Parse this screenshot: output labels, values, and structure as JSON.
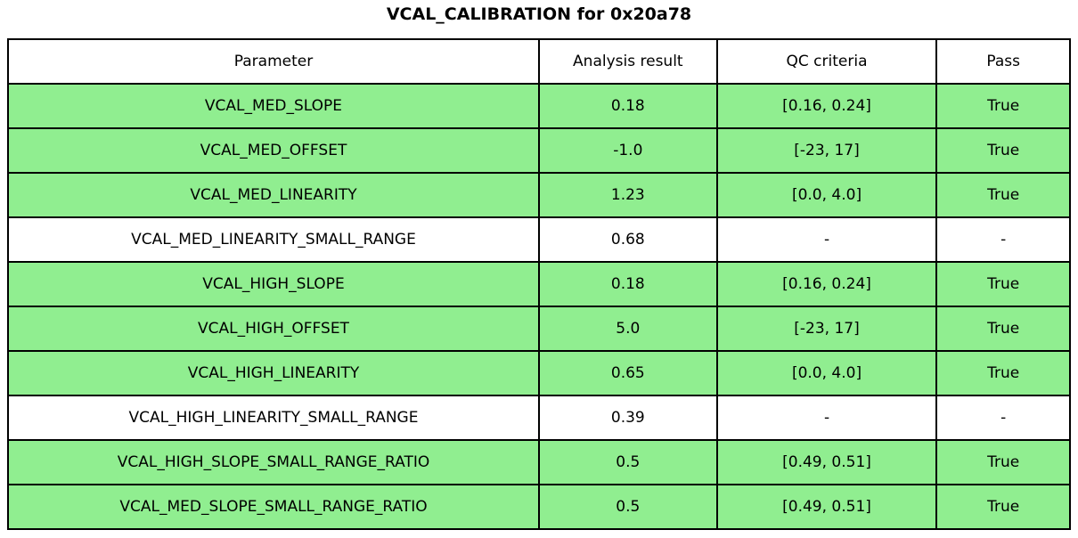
{
  "title": "VCAL_CALIBRATION for 0x20a78",
  "colors": {
    "pass_green": "#90ee90",
    "na_white": "#ffffff",
    "border": "#000000",
    "text": "#000000",
    "background": "#ffffff"
  },
  "table": {
    "headers": [
      "Parameter",
      "Analysis result",
      "QC criteria",
      "Pass"
    ],
    "rows": [
      {
        "parameter": "VCAL_MED_SLOPE",
        "result": "0.18",
        "criteria": "[0.16, 0.24]",
        "pass": "True",
        "highlight": true
      },
      {
        "parameter": "VCAL_MED_OFFSET",
        "result": "-1.0",
        "criteria": "[-23, 17]",
        "pass": "True",
        "highlight": true
      },
      {
        "parameter": "VCAL_MED_LINEARITY",
        "result": "1.23",
        "criteria": "[0.0, 4.0]",
        "pass": "True",
        "highlight": true
      },
      {
        "parameter": "VCAL_MED_LINEARITY_SMALL_RANGE",
        "result": "0.68",
        "criteria": "-",
        "pass": "-",
        "highlight": false
      },
      {
        "parameter": "VCAL_HIGH_SLOPE",
        "result": "0.18",
        "criteria": "[0.16, 0.24]",
        "pass": "True",
        "highlight": true
      },
      {
        "parameter": "VCAL_HIGH_OFFSET",
        "result": "5.0",
        "criteria": "[-23, 17]",
        "pass": "True",
        "highlight": true
      },
      {
        "parameter": "VCAL_HIGH_LINEARITY",
        "result": "0.65",
        "criteria": "[0.0, 4.0]",
        "pass": "True",
        "highlight": true
      },
      {
        "parameter": "VCAL_HIGH_LINEARITY_SMALL_RANGE",
        "result": "0.39",
        "criteria": "-",
        "pass": "-",
        "highlight": false
      },
      {
        "parameter": "VCAL_HIGH_SLOPE_SMALL_RANGE_RATIO",
        "result": "0.5",
        "criteria": "[0.49, 0.51]",
        "pass": "True",
        "highlight": true
      },
      {
        "parameter": "VCAL_MED_SLOPE_SMALL_RANGE_RATIO",
        "result": "0.5",
        "criteria": "[0.49, 0.51]",
        "pass": "True",
        "highlight": true
      }
    ]
  },
  "chart_data": {
    "type": "table",
    "title": "VCAL_CALIBRATION for 0x20a78",
    "columns": [
      "Parameter",
      "Analysis result",
      "QC criteria",
      "Pass"
    ],
    "rows": [
      [
        "VCAL_MED_SLOPE",
        0.18,
        "[0.16, 0.24]",
        "True"
      ],
      [
        "VCAL_MED_OFFSET",
        -1.0,
        "[-23, 17]",
        "True"
      ],
      [
        "VCAL_MED_LINEARITY",
        1.23,
        "[0.0, 4.0]",
        "True"
      ],
      [
        "VCAL_MED_LINEARITY_SMALL_RANGE",
        0.68,
        "-",
        "-"
      ],
      [
        "VCAL_HIGH_SLOPE",
        0.18,
        "[0.16, 0.24]",
        "True"
      ],
      [
        "VCAL_HIGH_OFFSET",
        5.0,
        "[-23, 17]",
        "True"
      ],
      [
        "VCAL_HIGH_LINEARITY",
        0.65,
        "[0.0, 4.0]",
        "True"
      ],
      [
        "VCAL_HIGH_LINEARITY_SMALL_RANGE",
        0.39,
        "-",
        "-"
      ],
      [
        "VCAL_HIGH_SLOPE_SMALL_RANGE_RATIO",
        0.5,
        "[0.49, 0.51]",
        "True"
      ],
      [
        "VCAL_MED_SLOPE_SMALL_RANGE_RATIO",
        0.5,
        "[0.49, 0.51]",
        "True"
      ]
    ],
    "row_highlighted": [
      true,
      true,
      true,
      false,
      true,
      true,
      true,
      false,
      true,
      true
    ],
    "highlight_color": "#90ee90",
    "layout": {
      "header_background": "#ffffff",
      "cell_text_align": "center",
      "border_color": "#000000"
    }
  }
}
